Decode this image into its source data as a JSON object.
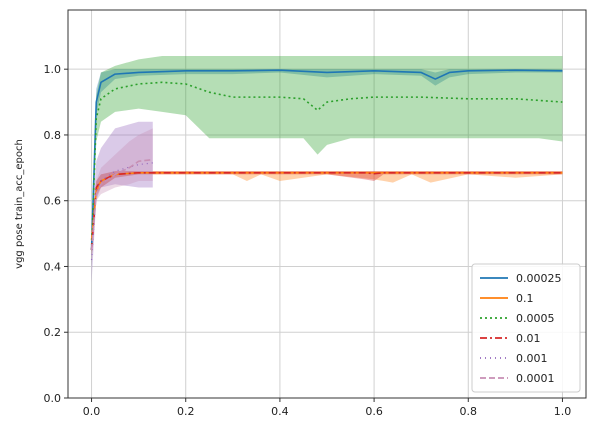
{
  "chart_data": {
    "type": "line",
    "title": "",
    "xlabel": "",
    "ylabel": "vgg pose train_acc_epoch",
    "xlim": [
      -0.05,
      1.05
    ],
    "ylim": [
      0.0,
      1.18
    ],
    "xticks": [
      0.0,
      0.2,
      0.4,
      0.6,
      0.8,
      1.0
    ],
    "xtick_labels": [
      "0.0",
      "0.2",
      "0.4",
      "0.6",
      "0.8",
      "1.0"
    ],
    "yticks": [
      0.0,
      0.2,
      0.4,
      0.6,
      0.8,
      1.0
    ],
    "ytick_labels": [
      "0.0",
      "0.2",
      "0.4",
      "0.6",
      "0.8",
      "1.0"
    ],
    "grid": true,
    "legend_position": "bottom-right",
    "series": [
      {
        "name": "0.00025",
        "color": "#1f77b4",
        "style": "solid",
        "x": [
          0.0,
          0.01,
          0.02,
          0.05,
          0.1,
          0.2,
          0.3,
          0.4,
          0.5,
          0.6,
          0.7,
          0.73,
          0.76,
          0.8,
          0.9,
          1.0
        ],
        "y": [
          0.45,
          0.9,
          0.96,
          0.985,
          0.99,
          0.995,
          0.995,
          0.997,
          0.99,
          0.995,
          0.99,
          0.97,
          0.99,
          0.995,
          0.997,
          0.995
        ],
        "band_low": [
          0.4,
          0.86,
          0.93,
          0.97,
          0.98,
          0.985,
          0.985,
          0.99,
          0.975,
          0.985,
          0.98,
          0.95,
          0.975,
          0.985,
          0.99,
          0.99
        ],
        "band_high": [
          0.5,
          0.94,
          0.99,
          1.0,
          1.0,
          1.0,
          1.0,
          1.0,
          1.0,
          1.0,
          1.0,
          0.99,
          1.0,
          1.0,
          1.0,
          1.0
        ]
      },
      {
        "name": "0.1",
        "color": "#ff7f0e",
        "style": "solid",
        "x": [
          0.0,
          0.01,
          0.02,
          0.05,
          0.1,
          0.2,
          0.3,
          0.33,
          0.36,
          0.4,
          0.5,
          0.6,
          0.64,
          0.68,
          0.72,
          0.8,
          0.9,
          1.0
        ],
        "y": [
          0.48,
          0.63,
          0.66,
          0.68,
          0.685,
          0.685,
          0.685,
          0.685,
          0.685,
          0.685,
          0.685,
          0.685,
          0.685,
          0.685,
          0.685,
          0.685,
          0.685,
          0.685
        ],
        "band_low": [
          0.44,
          0.61,
          0.64,
          0.67,
          0.68,
          0.68,
          0.68,
          0.66,
          0.68,
          0.66,
          0.68,
          0.665,
          0.655,
          0.68,
          0.655,
          0.68,
          0.67,
          0.68
        ],
        "band_high": [
          0.52,
          0.66,
          0.68,
          0.69,
          0.69,
          0.69,
          0.69,
          0.69,
          0.69,
          0.69,
          0.69,
          0.69,
          0.69,
          0.69,
          0.69,
          0.69,
          0.69,
          0.69
        ]
      },
      {
        "name": "0.0005",
        "color": "#2ca02c",
        "style": "dotted",
        "x": [
          0.0,
          0.01,
          0.02,
          0.05,
          0.1,
          0.15,
          0.2,
          0.25,
          0.3,
          0.4,
          0.45,
          0.48,
          0.5,
          0.55,
          0.6,
          0.7,
          0.8,
          0.9,
          0.95,
          1.0
        ],
        "y": [
          0.45,
          0.85,
          0.91,
          0.94,
          0.955,
          0.96,
          0.955,
          0.93,
          0.915,
          0.915,
          0.91,
          0.875,
          0.9,
          0.91,
          0.915,
          0.915,
          0.91,
          0.91,
          0.905,
          0.9
        ],
        "band_low": [
          0.4,
          0.78,
          0.84,
          0.87,
          0.88,
          0.87,
          0.86,
          0.79,
          0.79,
          0.79,
          0.79,
          0.74,
          0.77,
          0.79,
          0.79,
          0.79,
          0.79,
          0.79,
          0.79,
          0.78
        ],
        "band_high": [
          0.5,
          0.92,
          0.99,
          1.01,
          1.03,
          1.04,
          1.04,
          1.04,
          1.04,
          1.04,
          1.04,
          1.04,
          1.04,
          1.04,
          1.04,
          1.04,
          1.04,
          1.04,
          1.04,
          1.04
        ]
      },
      {
        "name": "0.01",
        "color": "#d62728",
        "style": "dashdot",
        "x": [
          0.0,
          0.01,
          0.02,
          0.05,
          0.1,
          0.2,
          0.3,
          0.4,
          0.5,
          0.58,
          0.6,
          0.62,
          0.7,
          0.8,
          0.9,
          1.0
        ],
        "y": [
          0.45,
          0.64,
          0.66,
          0.68,
          0.685,
          0.685,
          0.685,
          0.685,
          0.685,
          0.685,
          0.682,
          0.685,
          0.685,
          0.685,
          0.685,
          0.685
        ],
        "band_low": [
          0.42,
          0.62,
          0.64,
          0.67,
          0.68,
          0.68,
          0.68,
          0.68,
          0.68,
          0.665,
          0.66,
          0.68,
          0.68,
          0.68,
          0.68,
          0.68
        ],
        "band_high": [
          0.48,
          0.66,
          0.68,
          0.69,
          0.69,
          0.69,
          0.69,
          0.69,
          0.69,
          0.69,
          0.69,
          0.69,
          0.69,
          0.69,
          0.69,
          0.69
        ]
      },
      {
        "name": "0.001",
        "color": "#9467bd",
        "style": "dotted-light",
        "x": [
          0.0,
          0.01,
          0.02,
          0.05,
          0.1,
          0.13
        ],
        "y": [
          0.42,
          0.63,
          0.66,
          0.69,
          0.71,
          0.715
        ],
        "band_low": [
          0.35,
          0.6,
          0.64,
          0.65,
          0.64,
          0.64
        ],
        "band_high": [
          0.5,
          0.72,
          0.76,
          0.82,
          0.84,
          0.84
        ]
      },
      {
        "name": "0.0001",
        "color": "#c78fb4",
        "style": "dashed",
        "x": [
          0.0,
          0.01,
          0.02,
          0.05,
          0.08,
          0.1,
          0.13
        ],
        "y": [
          0.45,
          0.62,
          0.65,
          0.68,
          0.7,
          0.72,
          0.725
        ],
        "band_low": [
          0.4,
          0.6,
          0.62,
          0.64,
          0.65,
          0.66,
          0.66
        ],
        "band_high": [
          0.5,
          0.66,
          0.7,
          0.74,
          0.78,
          0.8,
          0.82
        ]
      }
    ]
  }
}
